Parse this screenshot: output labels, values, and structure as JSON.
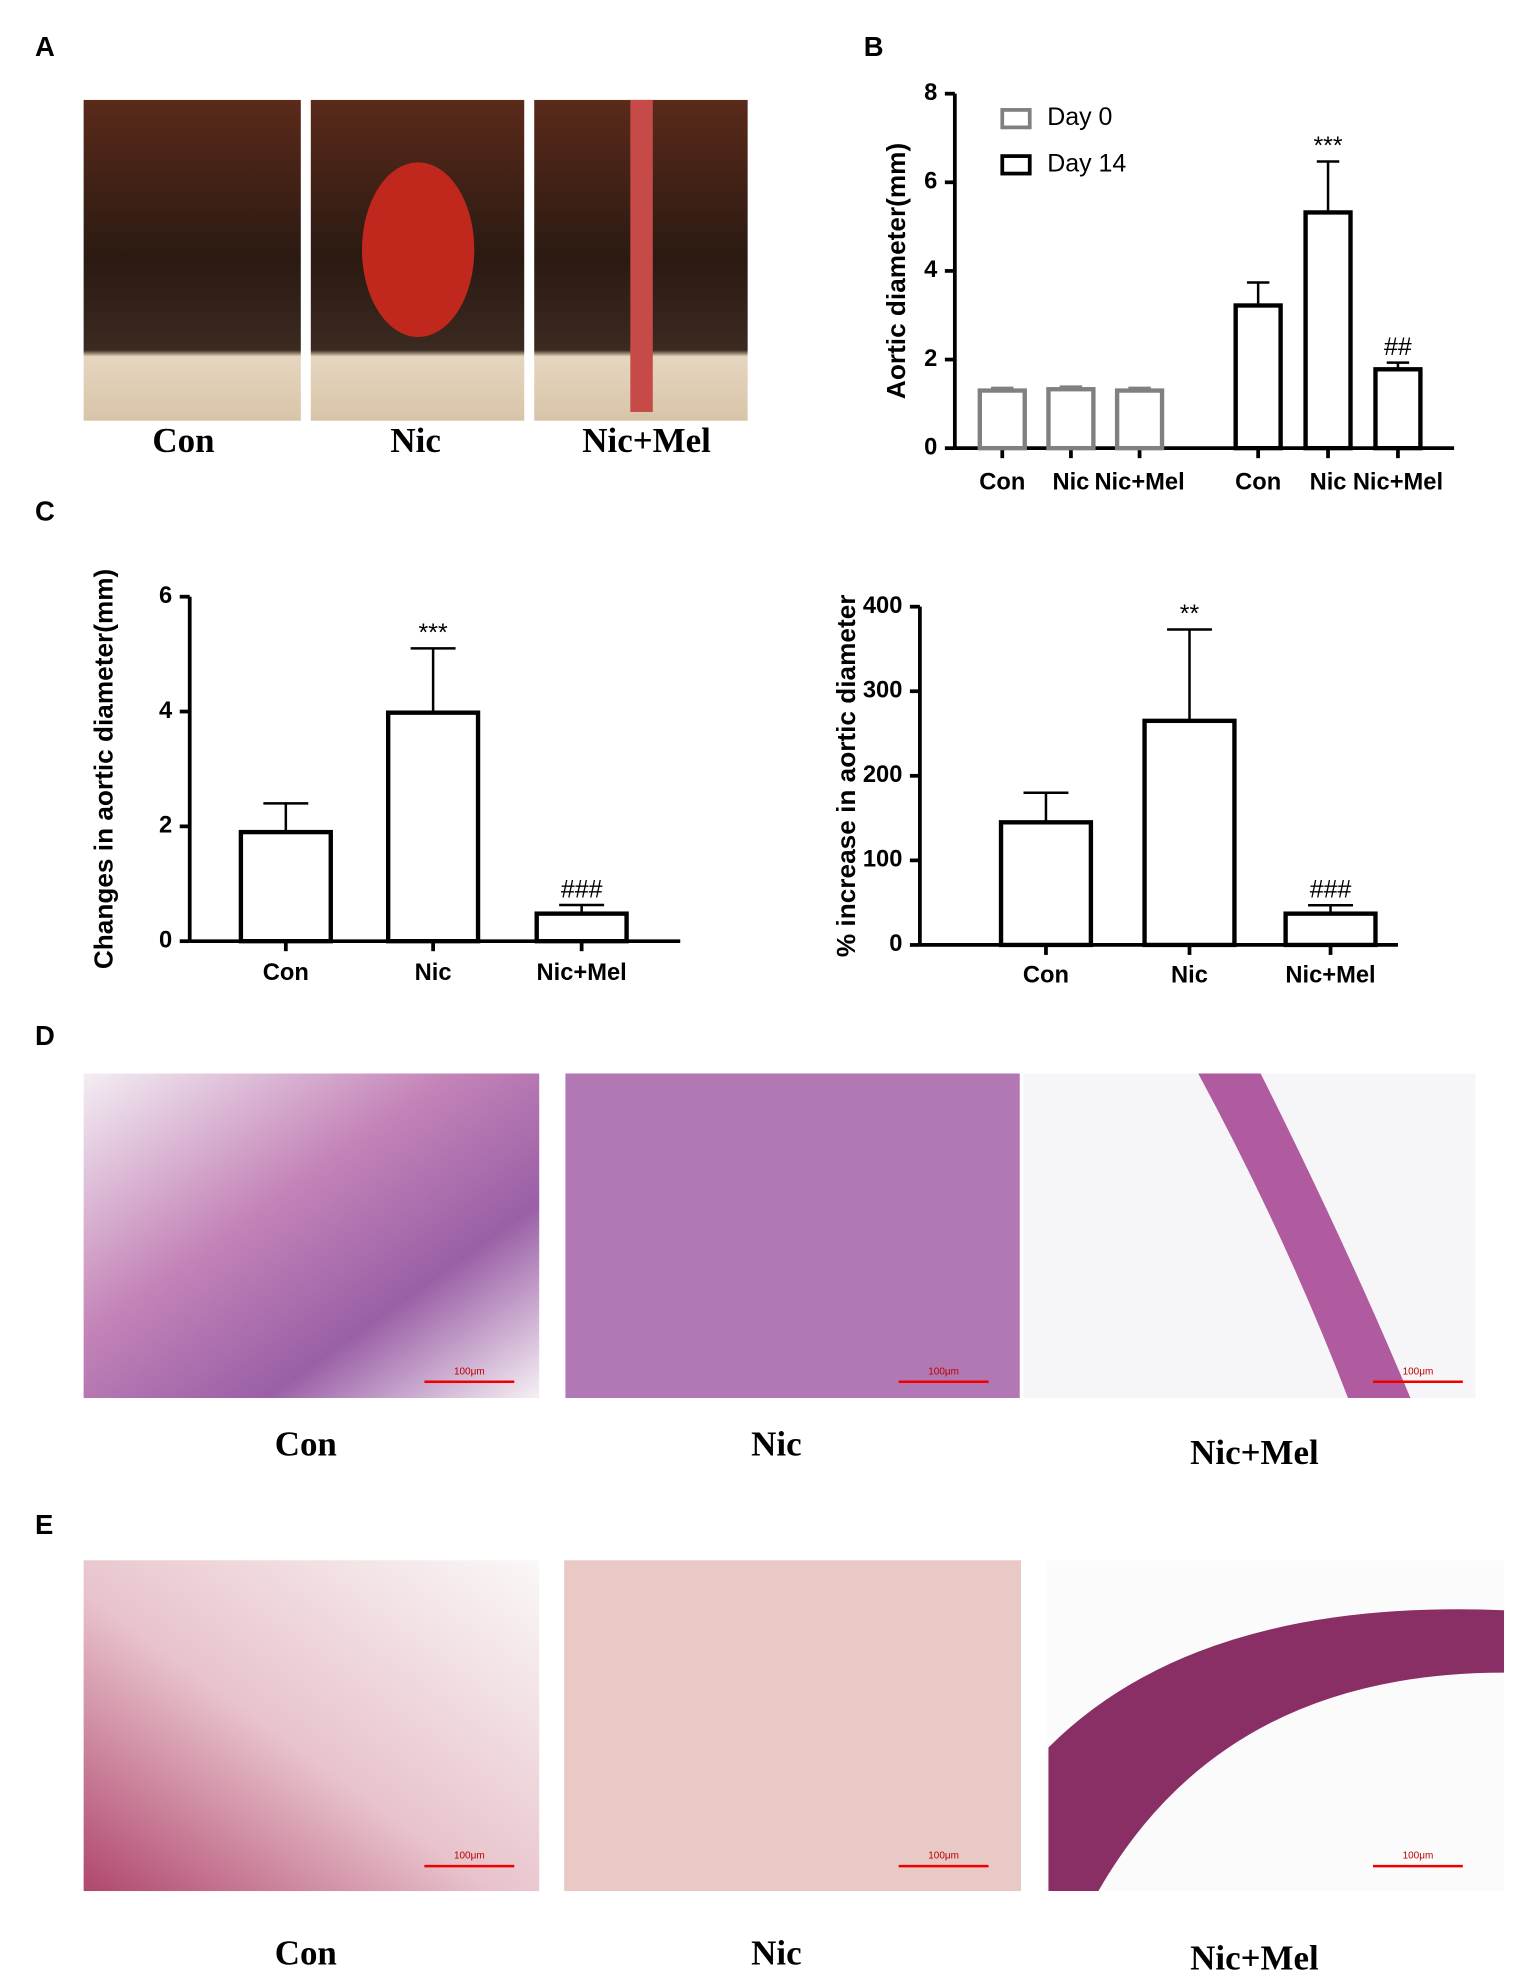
{
  "figure": {
    "panel_labels": [
      "A",
      "B",
      "C",
      "D",
      "E"
    ],
    "photo_captions_a": [
      "Con",
      "Nic",
      "Nic+Mel"
    ],
    "photo_captions_d": [
      "Con",
      "Nic",
      "Nic+Mel"
    ],
    "photo_captions_e": [
      "Con",
      "Nic",
      "Nic+Mel"
    ],
    "scale_bar_label": "100μm"
  },
  "chart_data": [
    {
      "type": "bar",
      "y_label": "Aortic diameter(mm)",
      "categories": [
        "Con",
        "Nic",
        "Nic+Mel",
        "Con",
        "Nic",
        "Nic+Mel"
      ],
      "series": [
        {
          "name": "Day 0",
          "color": "#808080",
          "values": [
            1.3,
            1.33,
            1.3,
            null,
            null,
            null
          ],
          "errors": [
            0.06,
            0.06,
            0.06,
            null,
            null,
            null
          ],
          "annotations": [
            null,
            null,
            null,
            null,
            null,
            null
          ]
        },
        {
          "name": "Day 14",
          "color": "#000000",
          "values": [
            null,
            null,
            null,
            3.22,
            5.32,
            1.78
          ],
          "errors": [
            null,
            null,
            null,
            0.52,
            1.15,
            0.15
          ],
          "annotations": [
            null,
            null,
            null,
            null,
            "***",
            "##"
          ]
        }
      ],
      "ylim": [
        0,
        8
      ],
      "yticks": [
        0,
        2,
        4,
        6,
        8
      ],
      "legend": "upper left"
    },
    {
      "type": "bar",
      "y_label": "Changes in aortic diameter(mm)",
      "categories": [
        "Con",
        "Nic",
        "Nic+Mel"
      ],
      "color": "#000000",
      "values": [
        1.9,
        3.98,
        0.48
      ],
      "errors": [
        0.5,
        1.12,
        0.15
      ],
      "annotations": [
        null,
        "***",
        "###"
      ],
      "ylim": [
        0,
        6
      ],
      "yticks": [
        0,
        2,
        4,
        6
      ]
    },
    {
      "type": "bar",
      "y_label": "% increase in aortic diameter",
      "categories": [
        "Con",
        "Nic",
        "Nic+Mel"
      ],
      "color": "#000000",
      "values": [
        145,
        265,
        37
      ],
      "errors": [
        35,
        108,
        10
      ],
      "annotations": [
        null,
        "**",
        "###"
      ],
      "ylim": [
        0,
        400
      ],
      "yticks": [
        0,
        100,
        200,
        300,
        400
      ]
    }
  ]
}
